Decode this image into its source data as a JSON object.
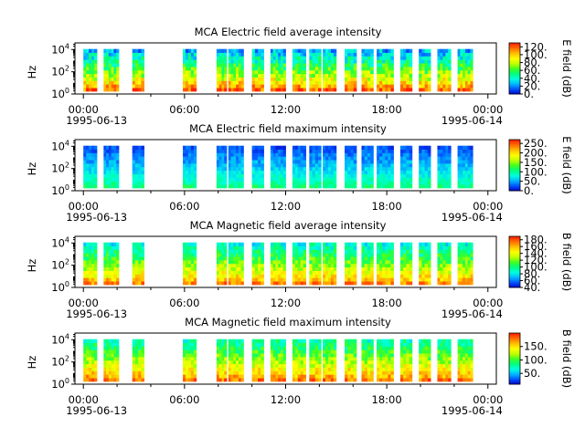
{
  "figure": {
    "x_tick_labels": [
      "00:00",
      "06:00",
      "12:00",
      "18:00",
      "00:00"
    ],
    "x_tick_hours": [
      0,
      6,
      12,
      18,
      24
    ],
    "date_start": "1995-06-13",
    "date_end": "1995-06-14",
    "ylabel": "Hz",
    "y_tick_labels": [
      {
        "base": "10",
        "exp": "0"
      },
      {
        "base": "10",
        "exp": "2"
      },
      {
        "base": "10",
        "exp": "4"
      }
    ]
  },
  "palette": [
    "#0000c8",
    "#0050ff",
    "#00b4ff",
    "#00ffe0",
    "#00ff80",
    "#40ff20",
    "#c0ff00",
    "#ffff00",
    "#ffc000",
    "#ff7000",
    "#ff2000"
  ],
  "chart_data": [
    {
      "type": "heatmap",
      "title": "MCA  Electric field average intensity",
      "xlabel": "",
      "ylabel": "Hz",
      "x_range_hours": [
        -0.5,
        24.5
      ],
      "ylim_log10_hz": [
        0,
        4.6
      ],
      "colorbar": {
        "label": "E field (dB)",
        "range": [
          0,
          130
        ],
        "ticks": [
          "0.",
          "20.",
          "40.",
          "60.",
          "80.",
          "100.",
          "120."
        ],
        "tick_values": [
          0,
          20,
          40,
          60,
          80,
          100,
          120
        ]
      },
      "data_intervals_hours": [
        [
          0.0,
          0.8
        ],
        [
          1.2,
          2.1
        ],
        [
          2.9,
          3.6
        ],
        [
          5.9,
          6.7
        ],
        [
          7.9,
          8.5
        ],
        [
          8.6,
          9.5
        ],
        [
          10.0,
          10.7
        ],
        [
          11.1,
          12.0
        ],
        [
          12.4,
          13.2
        ],
        [
          13.4,
          14.1
        ],
        [
          14.2,
          15.0
        ],
        [
          15.5,
          16.2
        ],
        [
          16.5,
          17.2
        ],
        [
          17.4,
          18.4
        ],
        [
          18.8,
          19.5
        ],
        [
          19.9,
          20.6
        ],
        [
          21.0,
          21.8
        ],
        [
          22.2,
          23.1
        ]
      ],
      "value_range_db": [
        20,
        120
      ]
    },
    {
      "type": "heatmap",
      "title": "MCA  Electric field maximum intensity",
      "xlabel": "",
      "ylabel": "Hz",
      "x_range_hours": [
        -0.5,
        24.5
      ],
      "ylim_log10_hz": [
        0,
        4.6
      ],
      "colorbar": {
        "label": "E field (dB)",
        "range": [
          0,
          270
        ],
        "ticks": [
          "0.",
          "50.",
          "100.",
          "150.",
          "200.",
          "250."
        ],
        "tick_values": [
          0,
          50,
          100,
          150,
          200,
          250
        ]
      },
      "data_intervals_hours": [
        [
          0.0,
          0.8
        ],
        [
          1.2,
          2.1
        ],
        [
          2.9,
          3.6
        ],
        [
          5.9,
          6.7
        ],
        [
          7.9,
          8.5
        ],
        [
          8.6,
          9.5
        ],
        [
          10.0,
          10.7
        ],
        [
          11.1,
          12.0
        ],
        [
          12.4,
          13.2
        ],
        [
          13.4,
          14.1
        ],
        [
          14.2,
          15.0
        ],
        [
          15.5,
          16.2
        ],
        [
          16.5,
          17.2
        ],
        [
          17.4,
          18.4
        ],
        [
          18.8,
          19.5
        ],
        [
          19.9,
          20.6
        ],
        [
          21.0,
          21.8
        ],
        [
          22.2,
          23.1
        ]
      ],
      "value_range_db": [
        20,
        110
      ]
    },
    {
      "type": "heatmap",
      "title": "MCA  Magnetic field average intensity",
      "xlabel": "",
      "ylabel": "Hz",
      "x_range_hours": [
        -0.5,
        24.5
      ],
      "ylim_log10_hz": [
        0,
        4.6
      ],
      "colorbar": {
        "label": "B field (dB)",
        "range": [
          40,
          190
        ],
        "ticks": [
          "40.",
          "60.",
          "80.",
          "100.",
          "120.",
          "140.",
          "160.",
          "180."
        ],
        "tick_values": [
          40,
          60,
          80,
          100,
          120,
          140,
          160,
          180
        ]
      },
      "data_intervals_hours": [
        [
          0.0,
          0.8
        ],
        [
          1.2,
          2.1
        ],
        [
          2.9,
          3.6
        ],
        [
          5.9,
          6.7
        ],
        [
          7.9,
          8.5
        ],
        [
          8.6,
          9.5
        ],
        [
          10.0,
          10.7
        ],
        [
          11.1,
          12.0
        ],
        [
          12.4,
          13.2
        ],
        [
          13.4,
          14.1
        ],
        [
          14.2,
          15.0
        ],
        [
          15.5,
          16.2
        ],
        [
          16.5,
          17.2
        ],
        [
          17.4,
          18.4
        ],
        [
          18.8,
          19.5
        ],
        [
          19.9,
          20.6
        ],
        [
          21.0,
          21.8
        ],
        [
          22.2,
          23.1
        ]
      ],
      "value_range_db": [
        80,
        170
      ]
    },
    {
      "type": "heatmap",
      "title": "MCA  Magnetic field maximum intensity",
      "xlabel": "",
      "ylabel": "Hz",
      "x_range_hours": [
        -0.5,
        24.5
      ],
      "ylim_log10_hz": [
        0,
        4.6
      ],
      "colorbar": {
        "label": "B field (dB)",
        "range": [
          10,
          200
        ],
        "ticks": [
          "50.",
          "100.",
          "150."
        ],
        "tick_values": [
          50,
          100,
          150
        ]
      },
      "data_intervals_hours": [
        [
          0.0,
          0.8
        ],
        [
          1.2,
          2.1
        ],
        [
          2.9,
          3.6
        ],
        [
          5.9,
          6.7
        ],
        [
          7.9,
          8.5
        ],
        [
          8.6,
          9.5
        ],
        [
          10.0,
          10.7
        ],
        [
          11.1,
          12.0
        ],
        [
          12.4,
          13.2
        ],
        [
          13.4,
          14.1
        ],
        [
          14.2,
          15.0
        ],
        [
          15.5,
          16.2
        ],
        [
          16.5,
          17.2
        ],
        [
          17.4,
          18.4
        ],
        [
          18.8,
          19.5
        ],
        [
          19.9,
          20.6
        ],
        [
          21.0,
          21.8
        ],
        [
          22.2,
          23.1
        ]
      ],
      "value_range_db": [
        70,
        180
      ]
    }
  ]
}
